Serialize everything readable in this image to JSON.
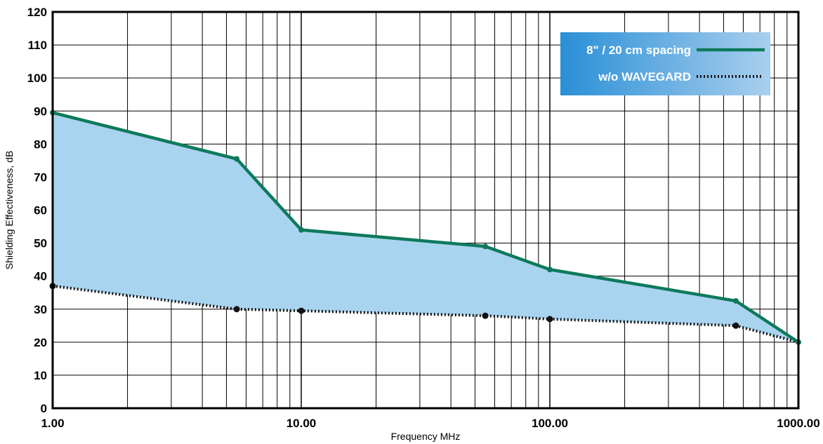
{
  "chart_data": {
    "type": "line",
    "x_scale": "log",
    "xlim": [
      1,
      1000
    ],
    "ylim": [
      0,
      120
    ],
    "xlabel": "Frequency MHz",
    "ylabel": "Shielding Effectiveness, dB",
    "x_ticks": [
      "1.00",
      "10.00",
      "100.00",
      "1000.00"
    ],
    "y_ticks": [
      "0",
      "10",
      "20",
      "30",
      "40",
      "50",
      "60",
      "70",
      "80",
      "90",
      "100",
      "110",
      "120"
    ],
    "grid": true,
    "legend_position": "top-right",
    "fill_between_series": true,
    "series": [
      {
        "name": "8\" / 20 cm spacing",
        "style": "solid",
        "color": "#0e7a5c",
        "x": [
          1,
          5.5,
          10,
          55,
          100,
          560,
          1050
        ],
        "y": [
          89.5,
          75.5,
          54,
          49,
          42,
          32.5,
          20
        ]
      },
      {
        "name": "w/o WAVEGARD",
        "style": "dotted",
        "color": "#111111",
        "x": [
          1,
          5.5,
          10,
          55,
          100,
          560,
          1050
        ],
        "y": [
          37,
          30,
          29.5,
          28,
          27,
          25,
          20
        ]
      }
    ],
    "fill_color": "#a9d4ef",
    "legend_gradient": [
      "#2a8fd6",
      "#a9cfee"
    ]
  }
}
